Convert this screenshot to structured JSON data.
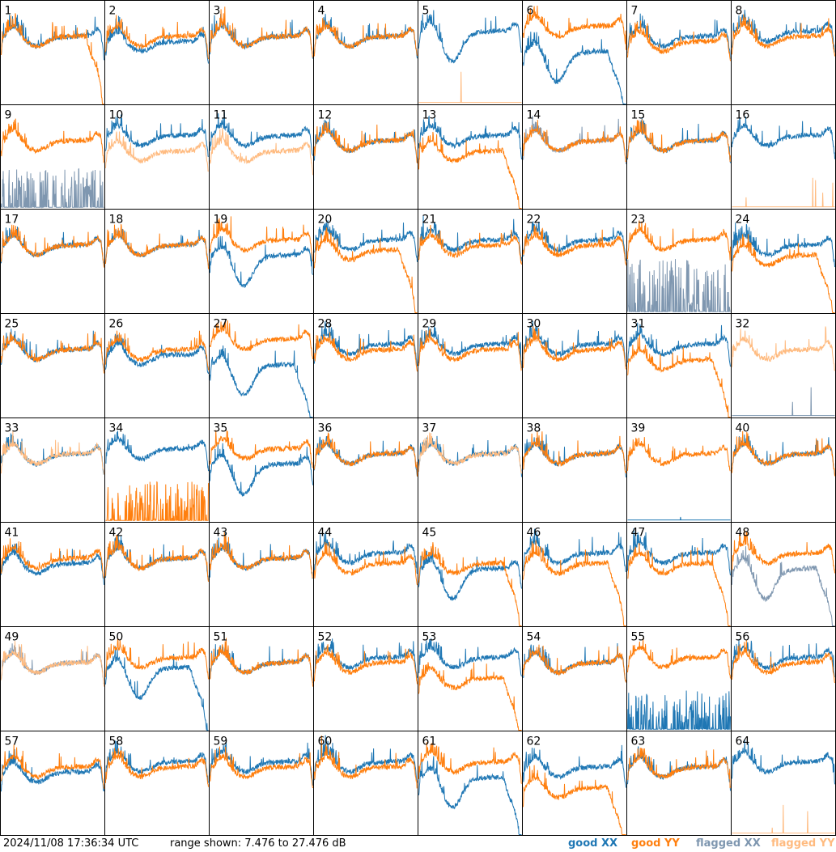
{
  "footer": {
    "timestamp": "2024/11/08 17:36:34 UTC",
    "range_text": "range shown: 7.476 to 27.476 dB"
  },
  "chart_data": {
    "type": "line",
    "layout": "8x8 small multiples, one panel per input",
    "y_units": "dB",
    "ylim": [
      7.476,
      27.476
    ],
    "legend": [
      {
        "label": "good XX",
        "color": "#1f77b4"
      },
      {
        "label": "good YY",
        "color": "#ff7f0e"
      },
      {
        "label": "flagged XX",
        "color": "#7f97b0"
      },
      {
        "label": "flagged YY",
        "color": "#ffbb80"
      }
    ],
    "panels": [
      {
        "label": "1",
        "profile_xx": "normal",
        "profile_yy": "droop",
        "flag_xx": false,
        "flag_yy": false,
        "level_xx": 20,
        "level_yy": 20
      },
      {
        "label": "2",
        "profile_xx": "normal",
        "profile_yy": "normal",
        "flag_xx": false,
        "flag_yy": false,
        "level_xx": 19,
        "level_yy": 20
      },
      {
        "label": "3",
        "profile_xx": "normal",
        "profile_yy": "normal",
        "flag_xx": false,
        "flag_yy": false,
        "level_xx": 20,
        "level_yy": 20
      },
      {
        "label": "4",
        "profile_xx": "normal",
        "profile_yy": "normal",
        "flag_xx": false,
        "flag_yy": false,
        "level_xx": 20,
        "level_yy": 20
      },
      {
        "label": "5",
        "profile_xx": "dip",
        "profile_yy": "flat_low",
        "flag_xx": false,
        "flag_yy": true,
        "level_xx": 21,
        "level_yy": 8
      },
      {
        "label": "6",
        "profile_xx": "dip_droop",
        "profile_yy": "normal",
        "flag_xx": false,
        "flag_yy": false,
        "level_xx": 17,
        "level_yy": 22
      },
      {
        "label": "7",
        "profile_xx": "normal",
        "profile_yy": "normal",
        "flag_xx": false,
        "flag_yy": false,
        "level_xx": 20,
        "level_yy": 19
      },
      {
        "label": "8",
        "profile_xx": "normal",
        "profile_yy": "normal",
        "flag_xx": false,
        "flag_yy": false,
        "level_xx": 21,
        "level_yy": 20
      },
      {
        "label": "9",
        "profile_xx": "spiky_low",
        "profile_yy": "normal",
        "flag_xx": true,
        "flag_yy": false,
        "level_xx": 9,
        "level_yy": 20
      },
      {
        "label": "10",
        "profile_xx": "normal",
        "profile_yy": "normal",
        "flag_xx": false,
        "flag_yy": true,
        "level_xx": 21,
        "level_yy": 18
      },
      {
        "label": "11",
        "profile_xx": "normal",
        "profile_yy": "normal",
        "flag_xx": false,
        "flag_yy": true,
        "level_xx": 21,
        "level_yy": 18
      },
      {
        "label": "12",
        "profile_xx": "normal",
        "profile_yy": "normal",
        "flag_xx": false,
        "flag_yy": false,
        "level_xx": 20,
        "level_yy": 20
      },
      {
        "label": "13",
        "profile_xx": "normal",
        "profile_yy": "droop",
        "flag_xx": false,
        "flag_yy": false,
        "level_xx": 21,
        "level_yy": 18
      },
      {
        "label": "14",
        "profile_xx": "normal",
        "profile_yy": "normal",
        "flag_xx": true,
        "flag_yy": false,
        "level_xx": 20,
        "level_yy": 20
      },
      {
        "label": "15",
        "profile_xx": "normal",
        "profile_yy": "normal",
        "flag_xx": false,
        "flag_yy": false,
        "level_xx": 20,
        "level_yy": 20
      },
      {
        "label": "16",
        "profile_xx": "normal",
        "profile_yy": "flat_low",
        "flag_xx": false,
        "flag_yy": true,
        "level_xx": 21,
        "level_yy": 8
      },
      {
        "label": "17",
        "profile_xx": "normal",
        "profile_yy": "normal",
        "flag_xx": false,
        "flag_yy": false,
        "level_xx": 20,
        "level_yy": 20
      },
      {
        "label": "18",
        "profile_xx": "normal",
        "profile_yy": "normal",
        "flag_xx": false,
        "flag_yy": false,
        "level_xx": 20,
        "level_yy": 20
      },
      {
        "label": "19",
        "profile_xx": "dip",
        "profile_yy": "normal",
        "flag_xx": false,
        "flag_yy": false,
        "level_xx": 18,
        "level_yy": 21
      },
      {
        "label": "20",
        "profile_xx": "normal",
        "profile_yy": "droop",
        "flag_xx": false,
        "flag_yy": false,
        "level_xx": 21,
        "level_yy": 19
      },
      {
        "label": "21",
        "profile_xx": "normal",
        "profile_yy": "normal",
        "flag_xx": false,
        "flag_yy": false,
        "level_xx": 21,
        "level_yy": 20
      },
      {
        "label": "22",
        "profile_xx": "normal",
        "profile_yy": "normal",
        "flag_xx": false,
        "flag_yy": false,
        "level_xx": 21,
        "level_yy": 20
      },
      {
        "label": "23",
        "profile_xx": "spiky_low",
        "profile_yy": "normal",
        "flag_xx": true,
        "flag_yy": false,
        "level_xx": 12,
        "level_yy": 21
      },
      {
        "label": "24",
        "profile_xx": "normal",
        "profile_yy": "droop",
        "flag_xx": false,
        "flag_yy": false,
        "level_xx": 20,
        "level_yy": 18
      },
      {
        "label": "25",
        "profile_xx": "normal",
        "profile_yy": "normal",
        "flag_xx": false,
        "flag_yy": false,
        "level_xx": 20,
        "level_yy": 20
      },
      {
        "label": "26",
        "profile_xx": "normal",
        "profile_yy": "normal",
        "flag_xx": false,
        "flag_yy": false,
        "level_xx": 19,
        "level_yy": 20
      },
      {
        "label": "27",
        "profile_xx": "dip_droop",
        "profile_yy": "normal",
        "flag_xx": false,
        "flag_yy": false,
        "level_xx": 17,
        "level_yy": 22
      },
      {
        "label": "28",
        "profile_xx": "normal",
        "profile_yy": "normal",
        "flag_xx": false,
        "flag_yy": false,
        "level_xx": 21,
        "level_yy": 20
      },
      {
        "label": "29",
        "profile_xx": "normal",
        "profile_yy": "normal",
        "flag_xx": false,
        "flag_yy": false,
        "level_xx": 21,
        "level_yy": 20
      },
      {
        "label": "30",
        "profile_xx": "normal",
        "profile_yy": "normal",
        "flag_xx": false,
        "flag_yy": false,
        "level_xx": 21,
        "level_yy": 20
      },
      {
        "label": "31",
        "profile_xx": "normal",
        "profile_yy": "droop",
        "flag_xx": false,
        "flag_yy": false,
        "level_xx": 21,
        "level_yy": 18
      },
      {
        "label": "32",
        "profile_xx": "flat_low",
        "profile_yy": "normal",
        "flag_xx": true,
        "flag_yy": true,
        "level_xx": 8,
        "level_yy": 20
      },
      {
        "label": "33",
        "profile_xx": "normal",
        "profile_yy": "normal",
        "flag_xx": false,
        "flag_yy": true,
        "level_xx": 20,
        "level_yy": 20
      },
      {
        "label": "34",
        "profile_xx": "normal",
        "profile_yy": "spiky_low",
        "flag_xx": false,
        "flag_yy": false,
        "level_xx": 21,
        "level_yy": 9
      },
      {
        "label": "35",
        "profile_xx": "dip",
        "profile_yy": "normal",
        "flag_xx": false,
        "flag_yy": false,
        "level_xx": 18,
        "level_yy": 21
      },
      {
        "label": "36",
        "profile_xx": "normal",
        "profile_yy": "normal",
        "flag_xx": false,
        "flag_yy": false,
        "level_xx": 20,
        "level_yy": 20
      },
      {
        "label": "37",
        "profile_xx": "normal",
        "profile_yy": "normal",
        "flag_xx": false,
        "flag_yy": true,
        "level_xx": 20,
        "level_yy": 20
      },
      {
        "label": "38",
        "profile_xx": "normal",
        "profile_yy": "normal",
        "flag_xx": false,
        "flag_yy": false,
        "level_xx": 20,
        "level_yy": 20
      },
      {
        "label": "39",
        "profile_xx": "flat_low",
        "profile_yy": "normal",
        "flag_xx": false,
        "flag_yy": false,
        "level_xx": 8,
        "level_yy": 20
      },
      {
        "label": "40",
        "profile_xx": "normal",
        "profile_yy": "normal",
        "flag_xx": false,
        "flag_yy": false,
        "level_xx": 20,
        "level_yy": 20
      },
      {
        "label": "41",
        "profile_xx": "normal",
        "profile_yy": "normal",
        "flag_xx": false,
        "flag_yy": false,
        "level_xx": 19,
        "level_yy": 20
      },
      {
        "label": "42",
        "profile_xx": "normal",
        "profile_yy": "normal",
        "flag_xx": false,
        "flag_yy": false,
        "level_xx": 20,
        "level_yy": 20
      },
      {
        "label": "43",
        "profile_xx": "normal",
        "profile_yy": "normal",
        "flag_xx": false,
        "flag_yy": false,
        "level_xx": 20,
        "level_yy": 20
      },
      {
        "label": "44",
        "profile_xx": "normal",
        "profile_yy": "normal",
        "flag_xx": false,
        "flag_yy": false,
        "level_xx": 21,
        "level_yy": 19
      },
      {
        "label": "45",
        "profile_xx": "dip",
        "profile_yy": "droop",
        "flag_xx": false,
        "flag_yy": false,
        "level_xx": 18,
        "level_yy": 19
      },
      {
        "label": "46",
        "profile_xx": "normal",
        "profile_yy": "droop",
        "flag_xx": false,
        "flag_yy": false,
        "level_xx": 21,
        "level_yy": 19
      },
      {
        "label": "47",
        "profile_xx": "normal",
        "profile_yy": "droop",
        "flag_xx": false,
        "flag_yy": false,
        "level_xx": 21,
        "level_yy": 19
      },
      {
        "label": "48",
        "profile_xx": "dip_droop",
        "profile_yy": "normal",
        "flag_xx": true,
        "flag_yy": false,
        "level_xx": 18,
        "level_yy": 21
      },
      {
        "label": "49",
        "profile_xx": "normal",
        "profile_yy": "normal",
        "flag_xx": true,
        "flag_yy": true,
        "level_xx": 20,
        "level_yy": 20
      },
      {
        "label": "50",
        "profile_xx": "dip_droop",
        "profile_yy": "normal",
        "flag_xx": false,
        "flag_yy": false,
        "level_xx": 19,
        "level_yy": 21
      },
      {
        "label": "51",
        "profile_xx": "normal",
        "profile_yy": "normal",
        "flag_xx": false,
        "flag_yy": false,
        "level_xx": 20,
        "level_yy": 20
      },
      {
        "label": "52",
        "profile_xx": "normal",
        "profile_yy": "normal",
        "flag_xx": false,
        "flag_yy": false,
        "level_xx": 21,
        "level_yy": 20
      },
      {
        "label": "53",
        "profile_xx": "normal",
        "profile_yy": "droop",
        "flag_xx": false,
        "flag_yy": false,
        "level_xx": 21,
        "level_yy": 17
      },
      {
        "label": "54",
        "profile_xx": "normal",
        "profile_yy": "normal",
        "flag_xx": false,
        "flag_yy": false,
        "level_xx": 20,
        "level_yy": 20
      },
      {
        "label": "55",
        "profile_xx": "spiky_low",
        "profile_yy": "normal",
        "flag_xx": false,
        "flag_yy": false,
        "level_xx": 9,
        "level_yy": 21
      },
      {
        "label": "56",
        "profile_xx": "normal",
        "profile_yy": "normal",
        "flag_xx": false,
        "flag_yy": false,
        "level_xx": 21,
        "level_yy": 20
      },
      {
        "label": "57",
        "profile_xx": "normal",
        "profile_yy": "normal",
        "flag_xx": false,
        "flag_yy": false,
        "level_xx": 19,
        "level_yy": 20
      },
      {
        "label": "58",
        "profile_xx": "normal",
        "profile_yy": "normal",
        "flag_xx": false,
        "flag_yy": false,
        "level_xx": 21,
        "level_yy": 20
      },
      {
        "label": "59",
        "profile_xx": "normal",
        "profile_yy": "normal",
        "flag_xx": false,
        "flag_yy": false,
        "level_xx": 21,
        "level_yy": 20
      },
      {
        "label": "60",
        "profile_xx": "normal",
        "profile_yy": "normal",
        "flag_xx": false,
        "flag_yy": false,
        "level_xx": 21,
        "level_yy": 20
      },
      {
        "label": "61",
        "profile_xx": "dip_droop",
        "profile_yy": "normal",
        "flag_xx": false,
        "flag_yy": false,
        "level_xx": 18,
        "level_yy": 21
      },
      {
        "label": "62",
        "profile_xx": "normal",
        "profile_yy": "droop",
        "flag_xx": false,
        "flag_yy": false,
        "level_xx": 20,
        "level_yy": 16
      },
      {
        "label": "63",
        "profile_xx": "normal",
        "profile_yy": "normal",
        "flag_xx": false,
        "flag_yy": false,
        "level_xx": 20,
        "level_yy": 20
      },
      {
        "label": "64",
        "profile_xx": "normal",
        "profile_yy": "flat_low",
        "flag_xx": false,
        "flag_yy": true,
        "level_xx": 21,
        "level_yy": 8
      }
    ]
  }
}
